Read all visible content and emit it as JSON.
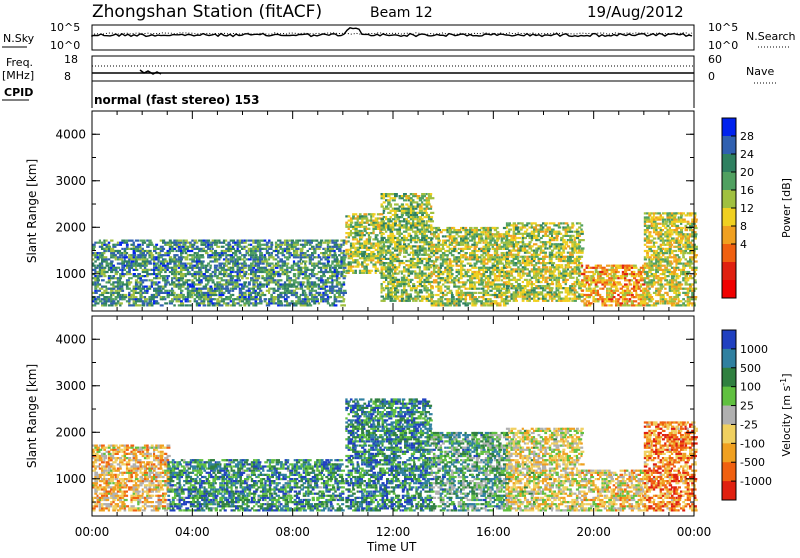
{
  "header": {
    "title": "Zhongshan Station (fitACF)",
    "beam": "Beam 12",
    "date": "19/Aug/2012"
  },
  "panels": {
    "nsky": {
      "left_label": "N.Sky",
      "right_label": "N.Search",
      "left_ticks": [
        "10^5",
        "10^0"
      ],
      "right_ticks": [
        "10^5",
        "10^0"
      ]
    },
    "freq": {
      "left_label_1": "Freq.",
      "left_label_2": "[MHz]",
      "right_label": "Nave",
      "left_ticks": [
        "18",
        "8"
      ],
      "right_ticks": [
        "60",
        "0"
      ]
    },
    "cpid": {
      "label": "CPID",
      "mode": "normal (fast stereo) 153"
    },
    "x_axis_title": "Time UT"
  },
  "chart_data": [
    {
      "type": "heatmap",
      "name": "power",
      "ylabel": "Slant Range [km]",
      "ylim": [
        200,
        4500
      ],
      "yticks": [
        "1000",
        "2000",
        "3000",
        "4000"
      ],
      "xlim": [
        0,
        24
      ],
      "xticks": [
        "00:00",
        "04:00",
        "08:00",
        "12:00",
        "16:00",
        "20:00",
        "00:00"
      ],
      "colorbar_title": "Power [dB]",
      "colorbar_ticks": [
        "4",
        "8",
        "12",
        "16",
        "20",
        "24",
        "28"
      ],
      "colors": [
        "#0022ee",
        "#3060b0",
        "#2f8060",
        "#50a060",
        "#a0c040",
        "#f0d020",
        "#f0a020",
        "#f06010",
        "#e02010",
        "#f00000"
      ],
      "regions": [
        {
          "t0": 0.0,
          "t1": 10.0,
          "r0": 300,
          "r1": 1700,
          "level": 0.75
        },
        {
          "t0": 10.1,
          "t1": 11.5,
          "r0": 1000,
          "r1": 2300,
          "level": 0.55
        },
        {
          "t0": 11.5,
          "t1": 13.5,
          "r0": 400,
          "r1": 2700,
          "level": 0.6
        },
        {
          "t0": 13.5,
          "t1": 16.5,
          "r0": 300,
          "r1": 2000,
          "level": 0.55
        },
        {
          "t0": 16.5,
          "t1": 19.5,
          "r0": 400,
          "r1": 2100,
          "level": 0.55
        },
        {
          "t0": 19.5,
          "t1": 22.0,
          "r0": 300,
          "r1": 1200,
          "level": 0.35
        },
        {
          "t0": 22.0,
          "t1": 24.0,
          "r0": 300,
          "r1": 2300,
          "level": 0.5
        }
      ]
    },
    {
      "type": "heatmap",
      "name": "velocity",
      "ylabel": "Slant Range [km]",
      "ylim": [
        200,
        4500
      ],
      "yticks": [
        "1000",
        "2000",
        "3000",
        "4000"
      ],
      "xlim": [
        0,
        24
      ],
      "xticks": [
        "00:00",
        "04:00",
        "08:00",
        "12:00",
        "16:00",
        "20:00",
        "00:00"
      ],
      "colorbar_title": "Velocity [m s",
      "colorbar_title_sup": "-1",
      "colorbar_title_end": "]",
      "colorbar_ticks": [
        "1000",
        "500",
        "100",
        "25",
        "-25",
        "-100",
        "-500",
        "-1000"
      ],
      "colors": [
        "#2040c0",
        "#3080a0",
        "#308040",
        "#60c040",
        "#b0b0b0",
        "#f0d060",
        "#f0a020",
        "#f06010",
        "#e02010"
      ],
      "regions": [
        {
          "t0": 0.0,
          "t1": 3.0,
          "r0": 300,
          "r1": 1700,
          "level": 0.35
        },
        {
          "t0": 3.0,
          "t1": 10.0,
          "r0": 300,
          "r1": 1400,
          "level": 0.8
        },
        {
          "t0": 10.1,
          "t1": 13.5,
          "r0": 300,
          "r1": 2700,
          "level": 0.82
        },
        {
          "t0": 13.5,
          "t1": 16.5,
          "r0": 300,
          "r1": 2000,
          "level": 0.7
        },
        {
          "t0": 16.5,
          "t1": 19.5,
          "r0": 300,
          "r1": 2100,
          "level": 0.45
        },
        {
          "t0": 19.5,
          "t1": 22.0,
          "r0": 300,
          "r1": 1200,
          "level": 0.4
        },
        {
          "t0": 22.0,
          "t1": 24.0,
          "r0": 300,
          "r1": 2200,
          "level": 0.2
        }
      ]
    }
  ]
}
